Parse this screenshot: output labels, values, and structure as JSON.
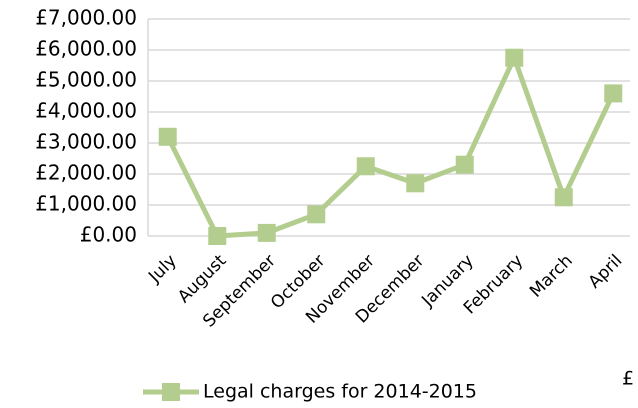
{
  "chart_data": {
    "type": "line",
    "categories": [
      "July",
      "August",
      "September",
      "October",
      "November",
      "December",
      "January",
      "February",
      "March",
      "April"
    ],
    "series": [
      {
        "name": "Legal charges for 2014-2015",
        "color": "#b3cd8e",
        "values": [
          3200,
          0,
          100,
          700,
          2250,
          1700,
          2300,
          5750,
          1250,
          4600
        ]
      }
    ],
    "ylim": [
      0,
      7000
    ],
    "yticks": [
      {
        "value": 0,
        "label": "£0.00"
      },
      {
        "value": 1000,
        "label": "£1,000.00"
      },
      {
        "value": 2000,
        "label": "£2,000.00"
      },
      {
        "value": 3000,
        "label": "£3,000.00"
      },
      {
        "value": 4000,
        "label": "£4,000.00"
      },
      {
        "value": 5000,
        "label": "£5,000.00"
      },
      {
        "value": 6000,
        "label": "£6,000.00"
      },
      {
        "value": 7000,
        "label": "£7,000.00"
      }
    ],
    "grid": true,
    "legend": "bottom",
    "annotations": [
      "£"
    ]
  }
}
